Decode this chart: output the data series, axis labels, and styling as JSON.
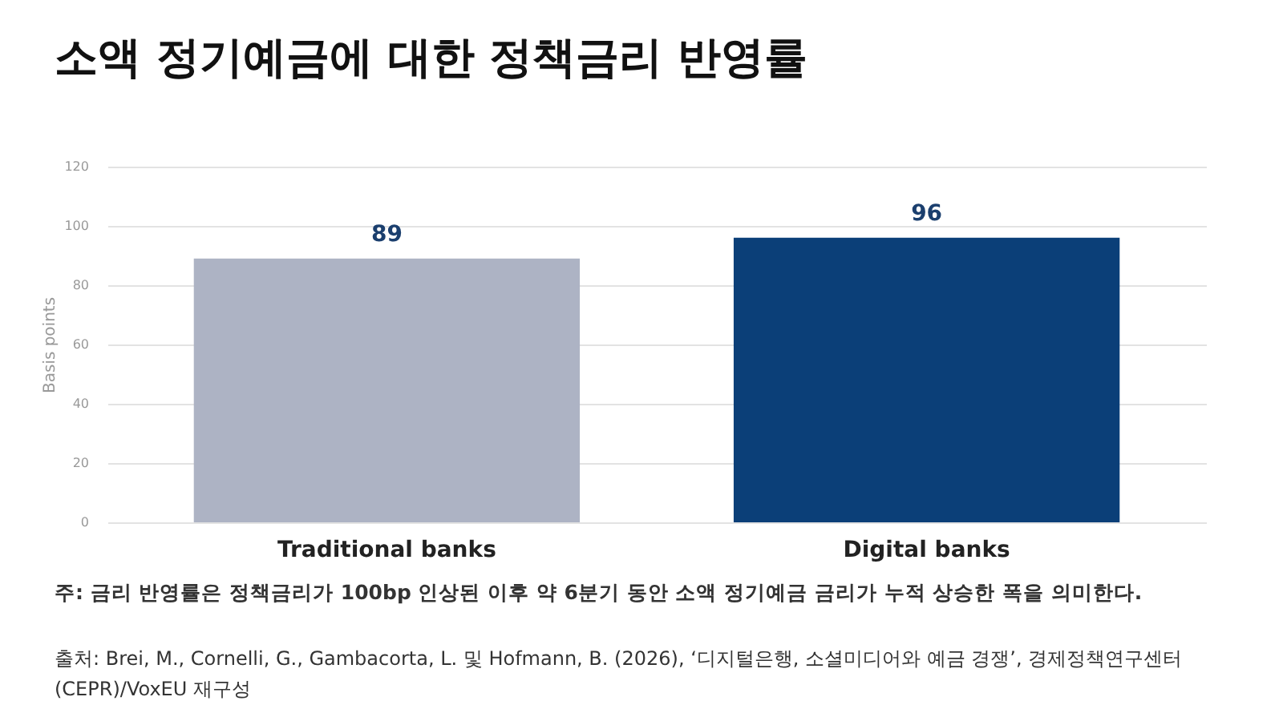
{
  "chart_data": {
    "type": "bar",
    "title": "소액 정기예금에 대한 정책금리 반영률",
    "ylabel": "Basis points",
    "categories": [
      "Traditional banks",
      "Digital banks"
    ],
    "values": [
      89,
      96
    ],
    "colors": [
      "#adb3c4",
      "#0b3f78"
    ],
    "ylim": [
      0,
      120
    ],
    "yticks": [
      0,
      20,
      40,
      60,
      80,
      100,
      120
    ],
    "grid": "y",
    "data_labels": true,
    "annotations": [
      "주: 금리 반영률은 정책금리가 100bp 인상된 이후 약 6분기 동안 소액 정기예금 금리가 누적 상승한 폭을 의미한다.",
      "출처: Brei, M., Cornelli, G., Gambacorta, L. 및 Hofmann, B. (2026), ‘디지털은행, 소셜미디어와 예금 경쟁’, 경제정책연구센터(CEPR)/VoxEU 재구성"
    ]
  }
}
